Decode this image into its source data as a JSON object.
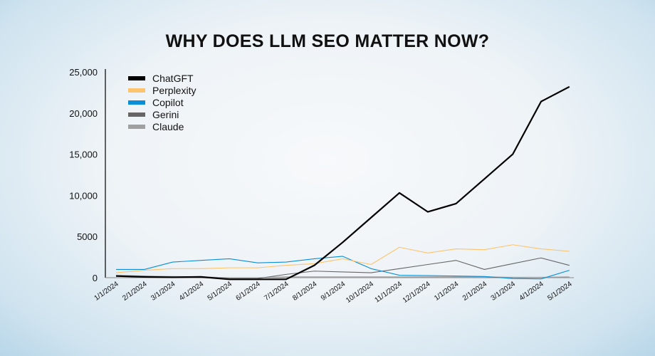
{
  "chart_data": {
    "type": "line",
    "title": "WHY DOES LLM SEO MATTER NOW?",
    "xlabel": "",
    "ylabel": "",
    "ylim": [
      0,
      25000
    ],
    "yticks": [
      "0",
      "5000",
      "10,000",
      "15,000",
      "20,000",
      "25,000"
    ],
    "ytick_values": [
      0,
      5000,
      10000,
      15000,
      20000,
      25000
    ],
    "grid": false,
    "legend_placement": "top-left",
    "categories": [
      "1/1/2024",
      "2/1/2024",
      "3/1/2024",
      "4/1/2024",
      "5/1/2024",
      "6/1/2024",
      "7/1/2024",
      "8/1/2024",
      "9/1/2024",
      "10/1/2024",
      "11/1/2024",
      "12/1/2024",
      "1/1/2024",
      "2/1/2024",
      "3/1/2024",
      "4/1/2024",
      "5/1/2024"
    ],
    "series": [
      {
        "name": "ChatGFT",
        "color": "#000000",
        "values": [
          200,
          100,
          50,
          100,
          -200,
          -200,
          -200,
          1500,
          4300,
          7300,
          10300,
          8000,
          9000,
          12000,
          15000,
          21400,
          23200
        ]
      },
      {
        "name": "Perplexity",
        "color": "#fcc46e",
        "values": [
          600,
          900,
          1100,
          1100,
          1200,
          1200,
          1500,
          1700,
          2300,
          1600,
          3700,
          3000,
          3500,
          3400,
          4000,
          3500,
          3200
        ]
      },
      {
        "name": "Copilot",
        "color": "#0a8fd6",
        "values": [
          1000,
          1000,
          1900,
          2100,
          2300,
          1800,
          1900,
          2300,
          2600,
          1100,
          300,
          250,
          200,
          150,
          -100,
          -150,
          900
        ]
      },
      {
        "name": "Gerini",
        "color": "#666666",
        "values": [
          200,
          100,
          100,
          0,
          -100,
          -100,
          400,
          800,
          700,
          600,
          1100,
          1600,
          2100,
          1000,
          1700,
          2400,
          1500
        ]
      },
      {
        "name": "Claude",
        "color": "#a0a0a0",
        "values": [
          300,
          200,
          150,
          100,
          0,
          0,
          100,
          100,
          100,
          100,
          100,
          100,
          100,
          100,
          50,
          50,
          100
        ]
      }
    ]
  }
}
